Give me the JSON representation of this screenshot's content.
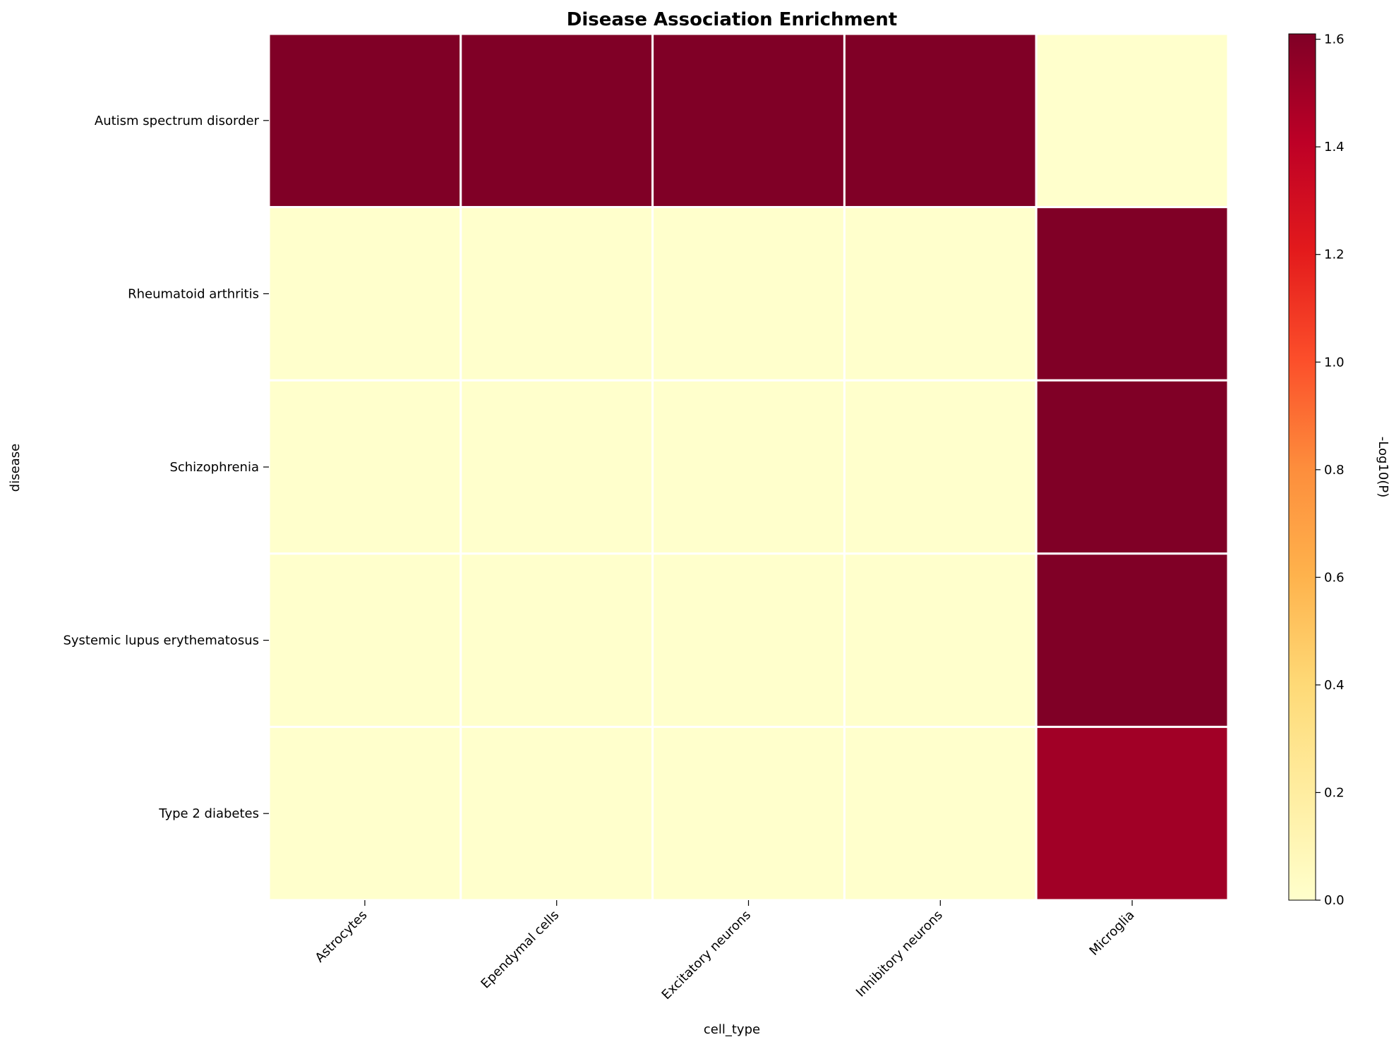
{
  "chart_data": {
    "type": "heatmap",
    "title": "Disease Association Enrichment",
    "xlabel": "cell_type",
    "ylabel": "disease",
    "x_categories": [
      "Astrocytes",
      "Ependymal cells",
      "Excitatory neurons",
      "Inhibitory neurons",
      "Microglia"
    ],
    "y_categories": [
      "Autism spectrum disorder",
      "Rheumatoid arthritis",
      "Schizophrenia",
      "Systemic lupus erythematosus",
      "Type 2 diabetes"
    ],
    "values": [
      [
        1.61,
        1.61,
        1.61,
        1.61,
        0.0
      ],
      [
        0.0,
        0.0,
        0.0,
        0.0,
        1.61
      ],
      [
        0.0,
        0.0,
        0.0,
        0.0,
        1.61
      ],
      [
        0.0,
        0.0,
        0.0,
        0.0,
        1.61
      ],
      [
        0.0,
        0.0,
        0.0,
        0.0,
        1.5
      ]
    ],
    "colorbar": {
      "label": "-Log10(P)",
      "range": [
        0.0,
        1.61
      ],
      "ticks": [
        "0.0",
        "0.2",
        "0.4",
        "0.6",
        "0.8",
        "1.0",
        "1.2",
        "1.4",
        "1.6"
      ],
      "colormap": [
        "#ffffcc",
        "#ffeda0",
        "#fed976",
        "#feb24c",
        "#fd8d3c",
        "#fc4e2a",
        "#e31a1c",
        "#bd0026",
        "#800026"
      ]
    },
    "grid": false,
    "cell_border_color": "#ffffff"
  }
}
